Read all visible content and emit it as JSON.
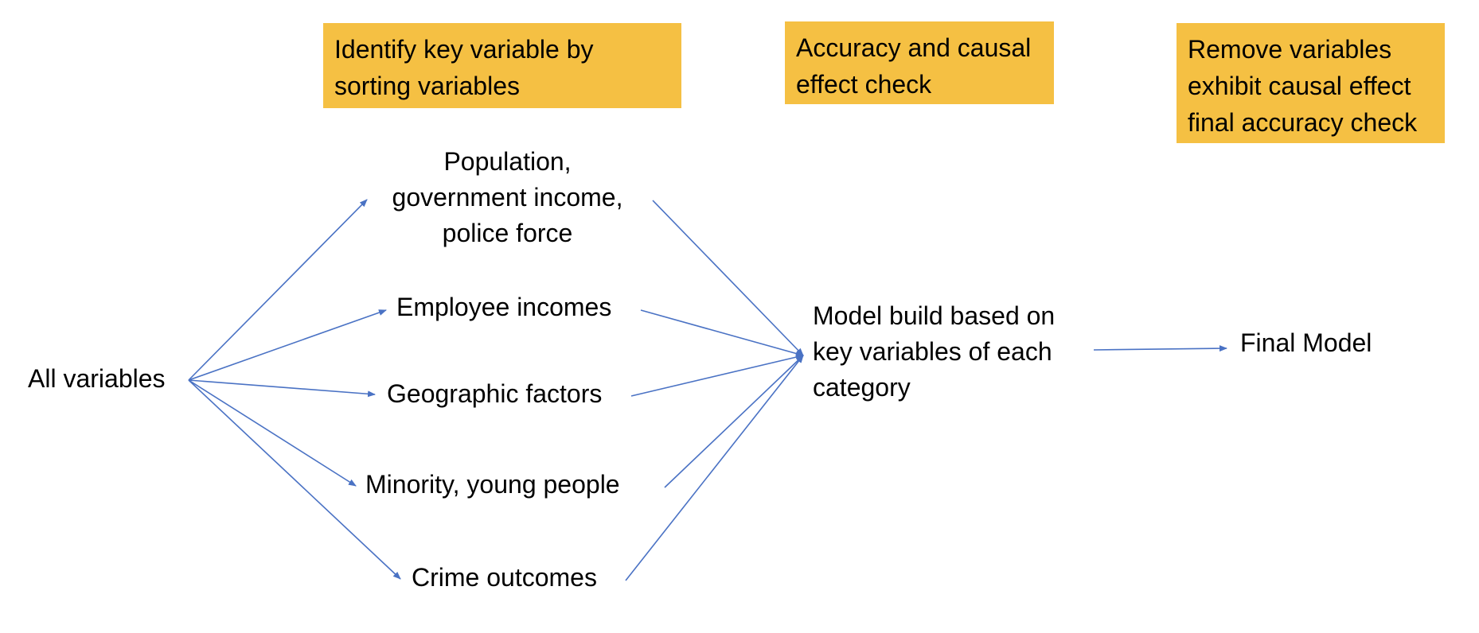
{
  "steps": [
    {
      "label": "Identify key variable by\nsorting variables"
    },
    {
      "label": "Accuracy and causal\neffect check"
    },
    {
      "label": "Remove variables\nexhibit causal effect\nfinal accuracy check"
    }
  ],
  "nodes": {
    "source": "All variables",
    "categories": [
      "Population,\ngovernment income,\npolice force",
      "Employee incomes",
      "Geographic factors",
      "Minority, young people",
      "Crime outcomes"
    ],
    "model_build": "Model build based on\nkey variables of each\ncategory",
    "final_model": "Final Model"
  },
  "colors": {
    "step_fill": "#f5c043",
    "arrow": "#4a72c4"
  }
}
